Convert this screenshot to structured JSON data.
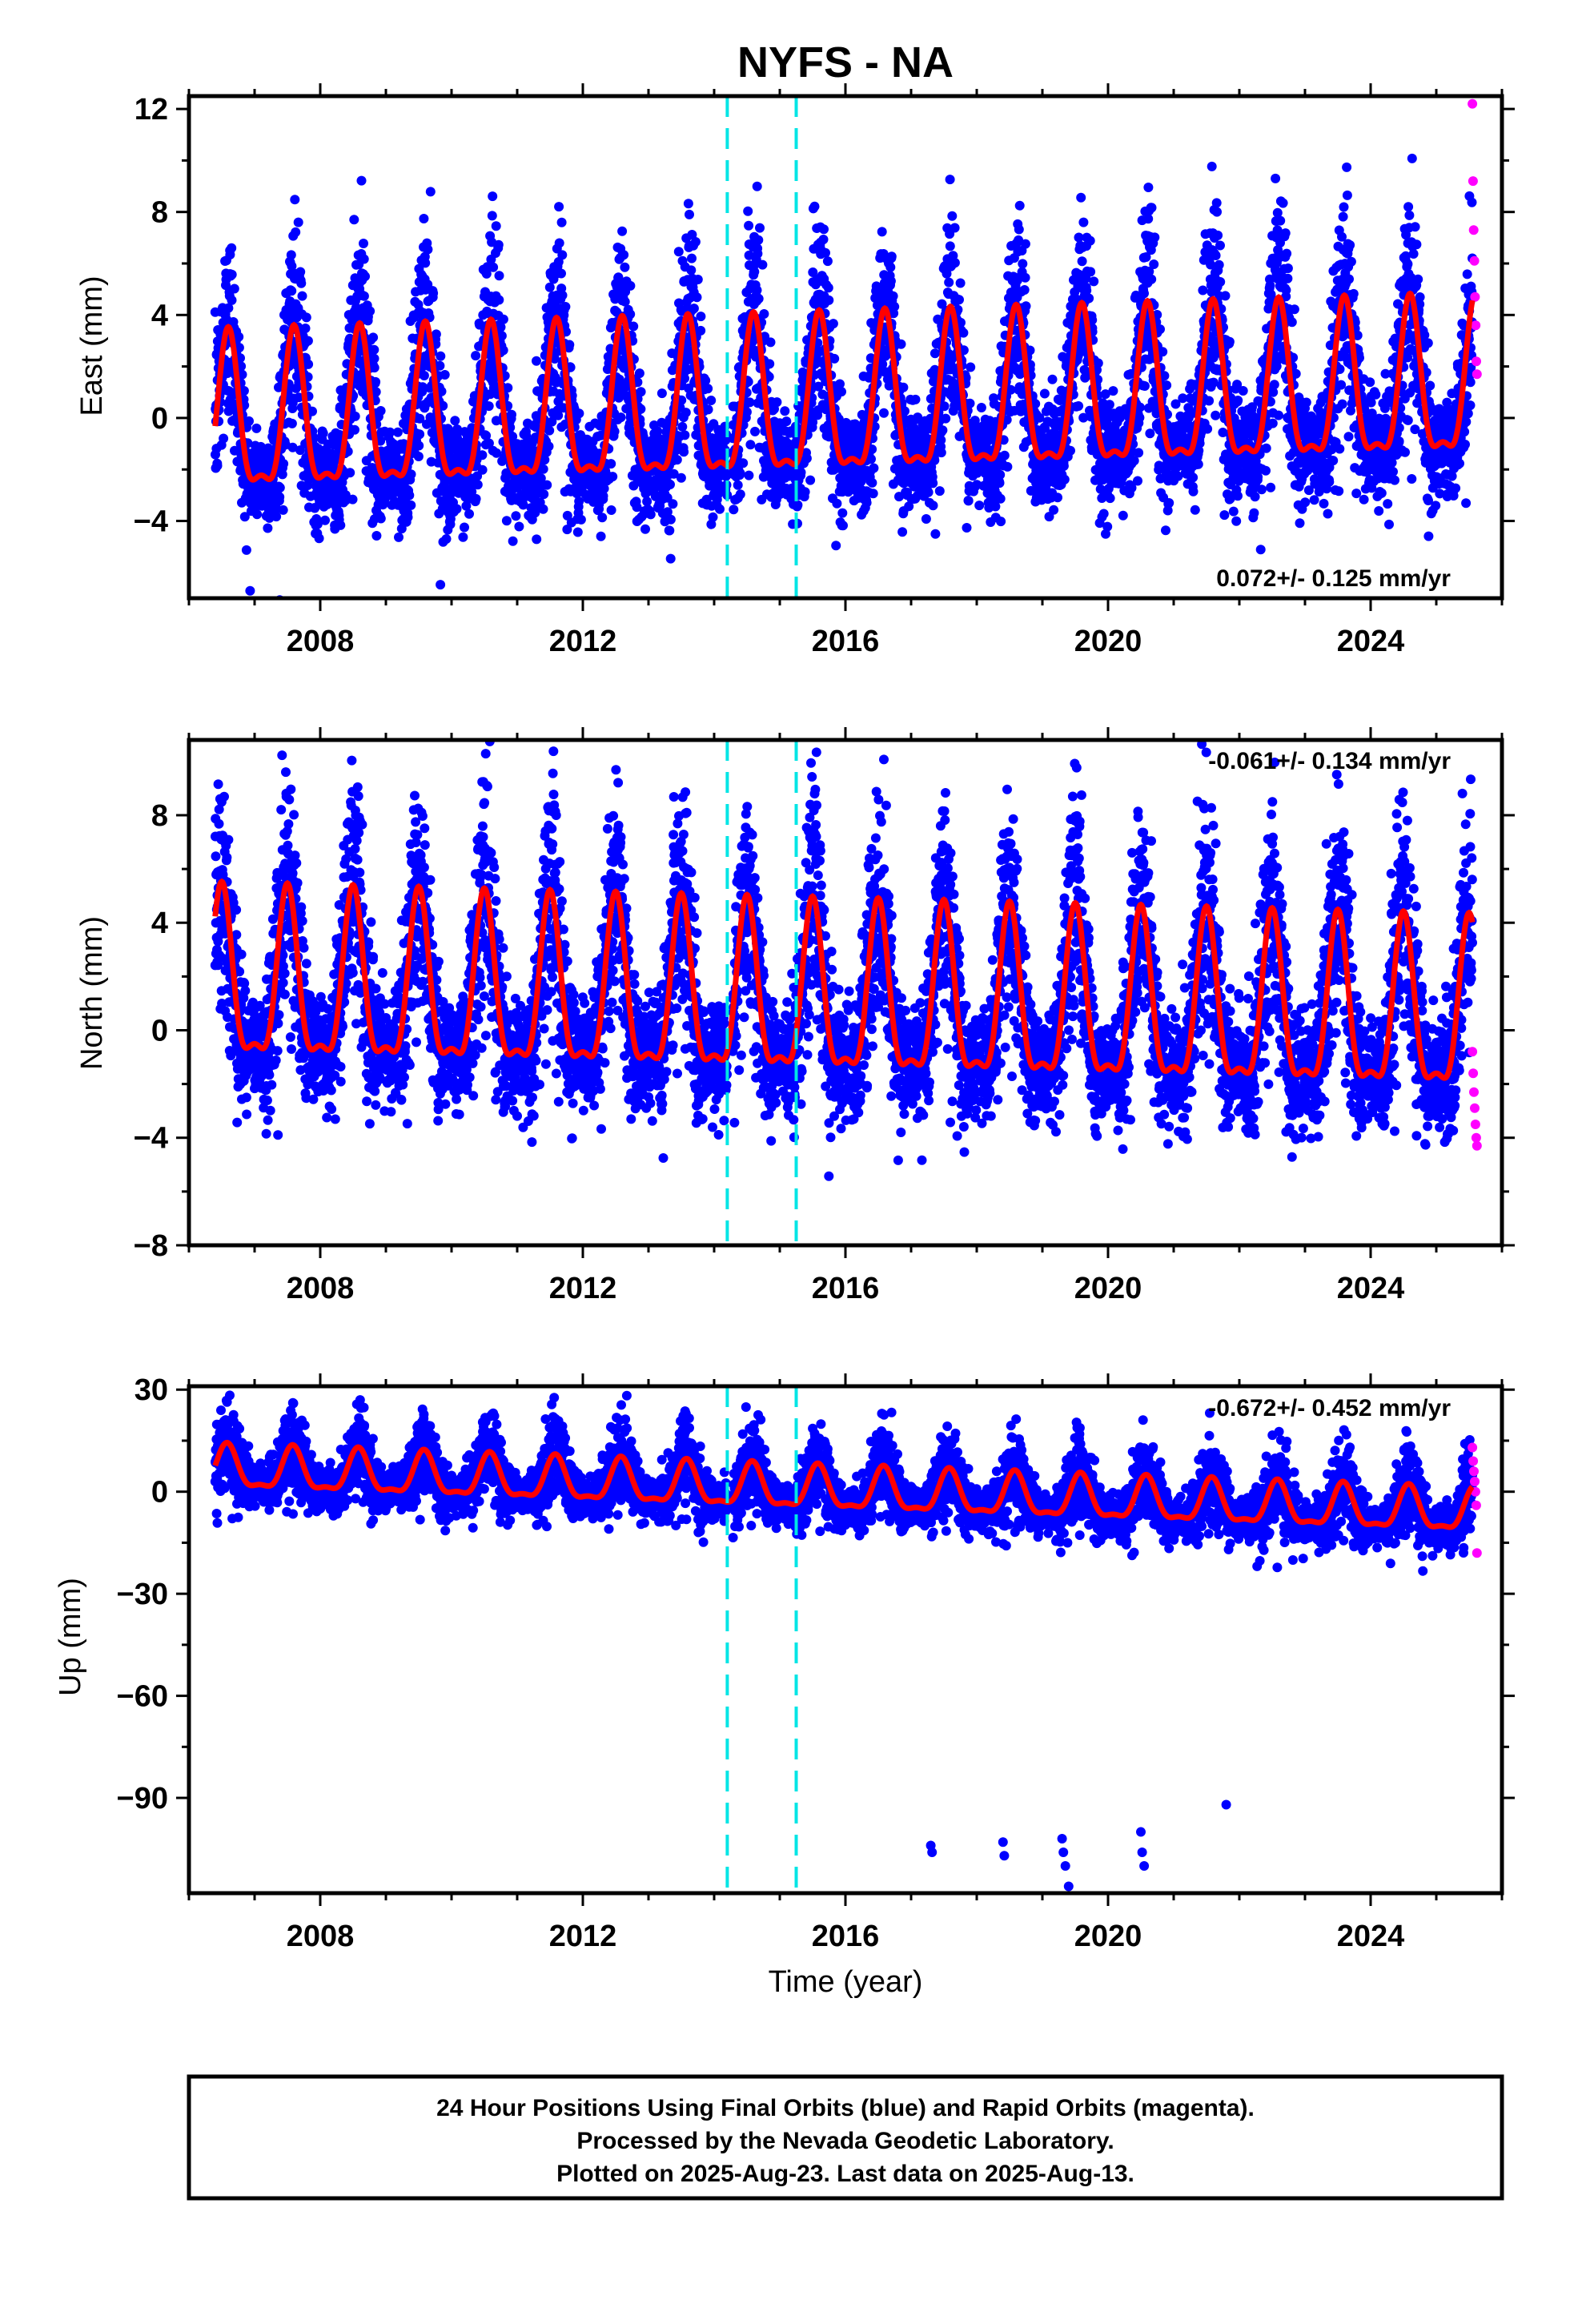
{
  "chart_data": {
    "type": "scatter",
    "title": "NYFS - NA",
    "xlabel": "Time (year)",
    "xlim": [
      2006.0,
      2026.0
    ],
    "xticks": [
      2008,
      2012,
      2016,
      2020,
      2024
    ],
    "xtick_labels": [
      "2008",
      "2012",
      "2016",
      "2020",
      "2024"
    ],
    "grid": false,
    "offset_lines": {
      "years": [
        2014.2,
        2015.25
      ],
      "color": "#00e5e5"
    },
    "colors": {
      "final": "#0000ff",
      "rapid": "#ff00ff",
      "model": "#ff0000"
    },
    "data_start": 2006.4,
    "final_end": 2025.55,
    "rapid_end": 2025.62,
    "panels": [
      {
        "id": "east",
        "ylabel": "East (mm)",
        "ylim": [
          -7,
          12.5
        ],
        "yticks": [
          12,
          8,
          4,
          0,
          -4
        ],
        "ytick_labels": [
          "12",
          "8",
          "4",
          "0",
          "−4"
        ],
        "rate_label": "0.072+/- 0.125 mm/yr",
        "rate_position": "bottom-right",
        "model": {
          "mean": 0.3,
          "trend_per_year": 0.072,
          "amplitude": 2.9,
          "peak_phase": 0.6,
          "noise_sd": 1.4
        },
        "rapid_values": [
          12.2,
          9.2,
          7.3,
          6.1,
          4.7,
          3.6,
          2.2,
          1.7
        ]
      },
      {
        "id": "north",
        "ylabel": "North (mm)",
        "ylim": [
          -8,
          10.8
        ],
        "yticks": [
          8,
          4,
          0,
          -4,
          -8
        ],
        "ytick_labels": [
          "8",
          "4",
          "0",
          "−4",
          "−8"
        ],
        "rate_label": "-0.061+/- 0.134 mm/yr",
        "rate_position": "top-right",
        "model": {
          "mean": 0.9,
          "trend_per_year": -0.061,
          "amplitude": 3.0,
          "peak_phase": 0.5,
          "noise_sd": 1.5
        },
        "rapid_values": [
          -0.8,
          -1.6,
          -2.3,
          -2.9,
          -3.5,
          -4.0,
          -4.3
        ]
      },
      {
        "id": "up",
        "ylabel": "Up (mm)",
        "ylim": [
          -118,
          31
        ],
        "yticks": [
          30,
          0,
          -30,
          -60,
          -90
        ],
        "ytick_labels": [
          "30",
          "0",
          "−30",
          "−60",
          "−90"
        ],
        "rate_label": "-0.672+/- 0.452 mm/yr",
        "rate_position": "top-right",
        "model": {
          "mean": 0.0,
          "trend_per_year": -0.672,
          "amplitude": 6.0,
          "peak_phase": 0.58,
          "noise_sd": 4.5
        },
        "rapid_values": [
          13,
          9,
          6,
          3,
          0,
          -4,
          -18
        ],
        "outliers": [
          [
            2017.3,
            -104
          ],
          [
            2017.32,
            -106
          ],
          [
            2018.4,
            -103
          ],
          [
            2018.42,
            -107
          ],
          [
            2019.3,
            -102
          ],
          [
            2019.32,
            -106
          ],
          [
            2019.35,
            -110
          ],
          [
            2019.4,
            -116
          ],
          [
            2020.5,
            -100
          ],
          [
            2020.52,
            -106
          ],
          [
            2020.55,
            -110
          ],
          [
            2021.8,
            -92
          ]
        ]
      }
    ],
    "footer_lines": [
      "24 Hour Positions Using Final Orbits (blue) and Rapid Orbits (magenta).",
      "Processed by the Nevada Geodetic Laboratory.",
      "Plotted on 2025-Aug-23. Last data on 2025-Aug-13."
    ]
  }
}
